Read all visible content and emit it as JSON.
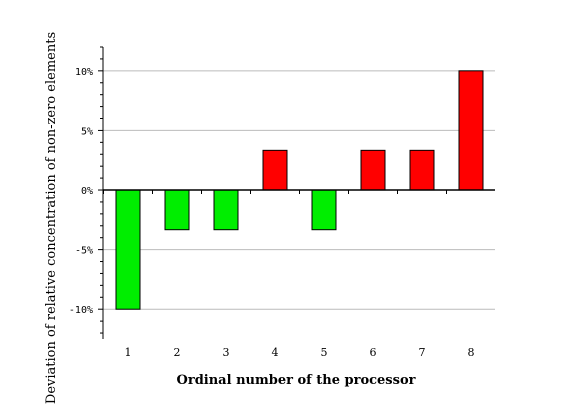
{
  "chart_data": {
    "type": "bar",
    "title": "",
    "xlabel": "Ordinal number of the processor",
    "ylabel": "Deviation of relative concentration of non-zero elements",
    "categories": [
      "1",
      "2",
      "3",
      "4",
      "5",
      "6",
      "7",
      "8"
    ],
    "values": [
      -10,
      -3.33,
      -3.33,
      3.33,
      -3.33,
      3.33,
      3.33,
      10
    ],
    "ylim": [
      -12.5,
      12
    ],
    "yticks": [
      {
        "value": 10,
        "label": "10%"
      },
      {
        "value": 5,
        "label": "5%"
      },
      {
        "value": 0,
        "label": "0%"
      },
      {
        "value": -5,
        "label": "-5%"
      },
      {
        "value": -10,
        "label": "-10%"
      }
    ],
    "grid": true,
    "colors": {
      "positive": "#ff0000",
      "negative": "#00ee00",
      "grid": "#bbbbbb",
      "axis": "#000000"
    }
  }
}
